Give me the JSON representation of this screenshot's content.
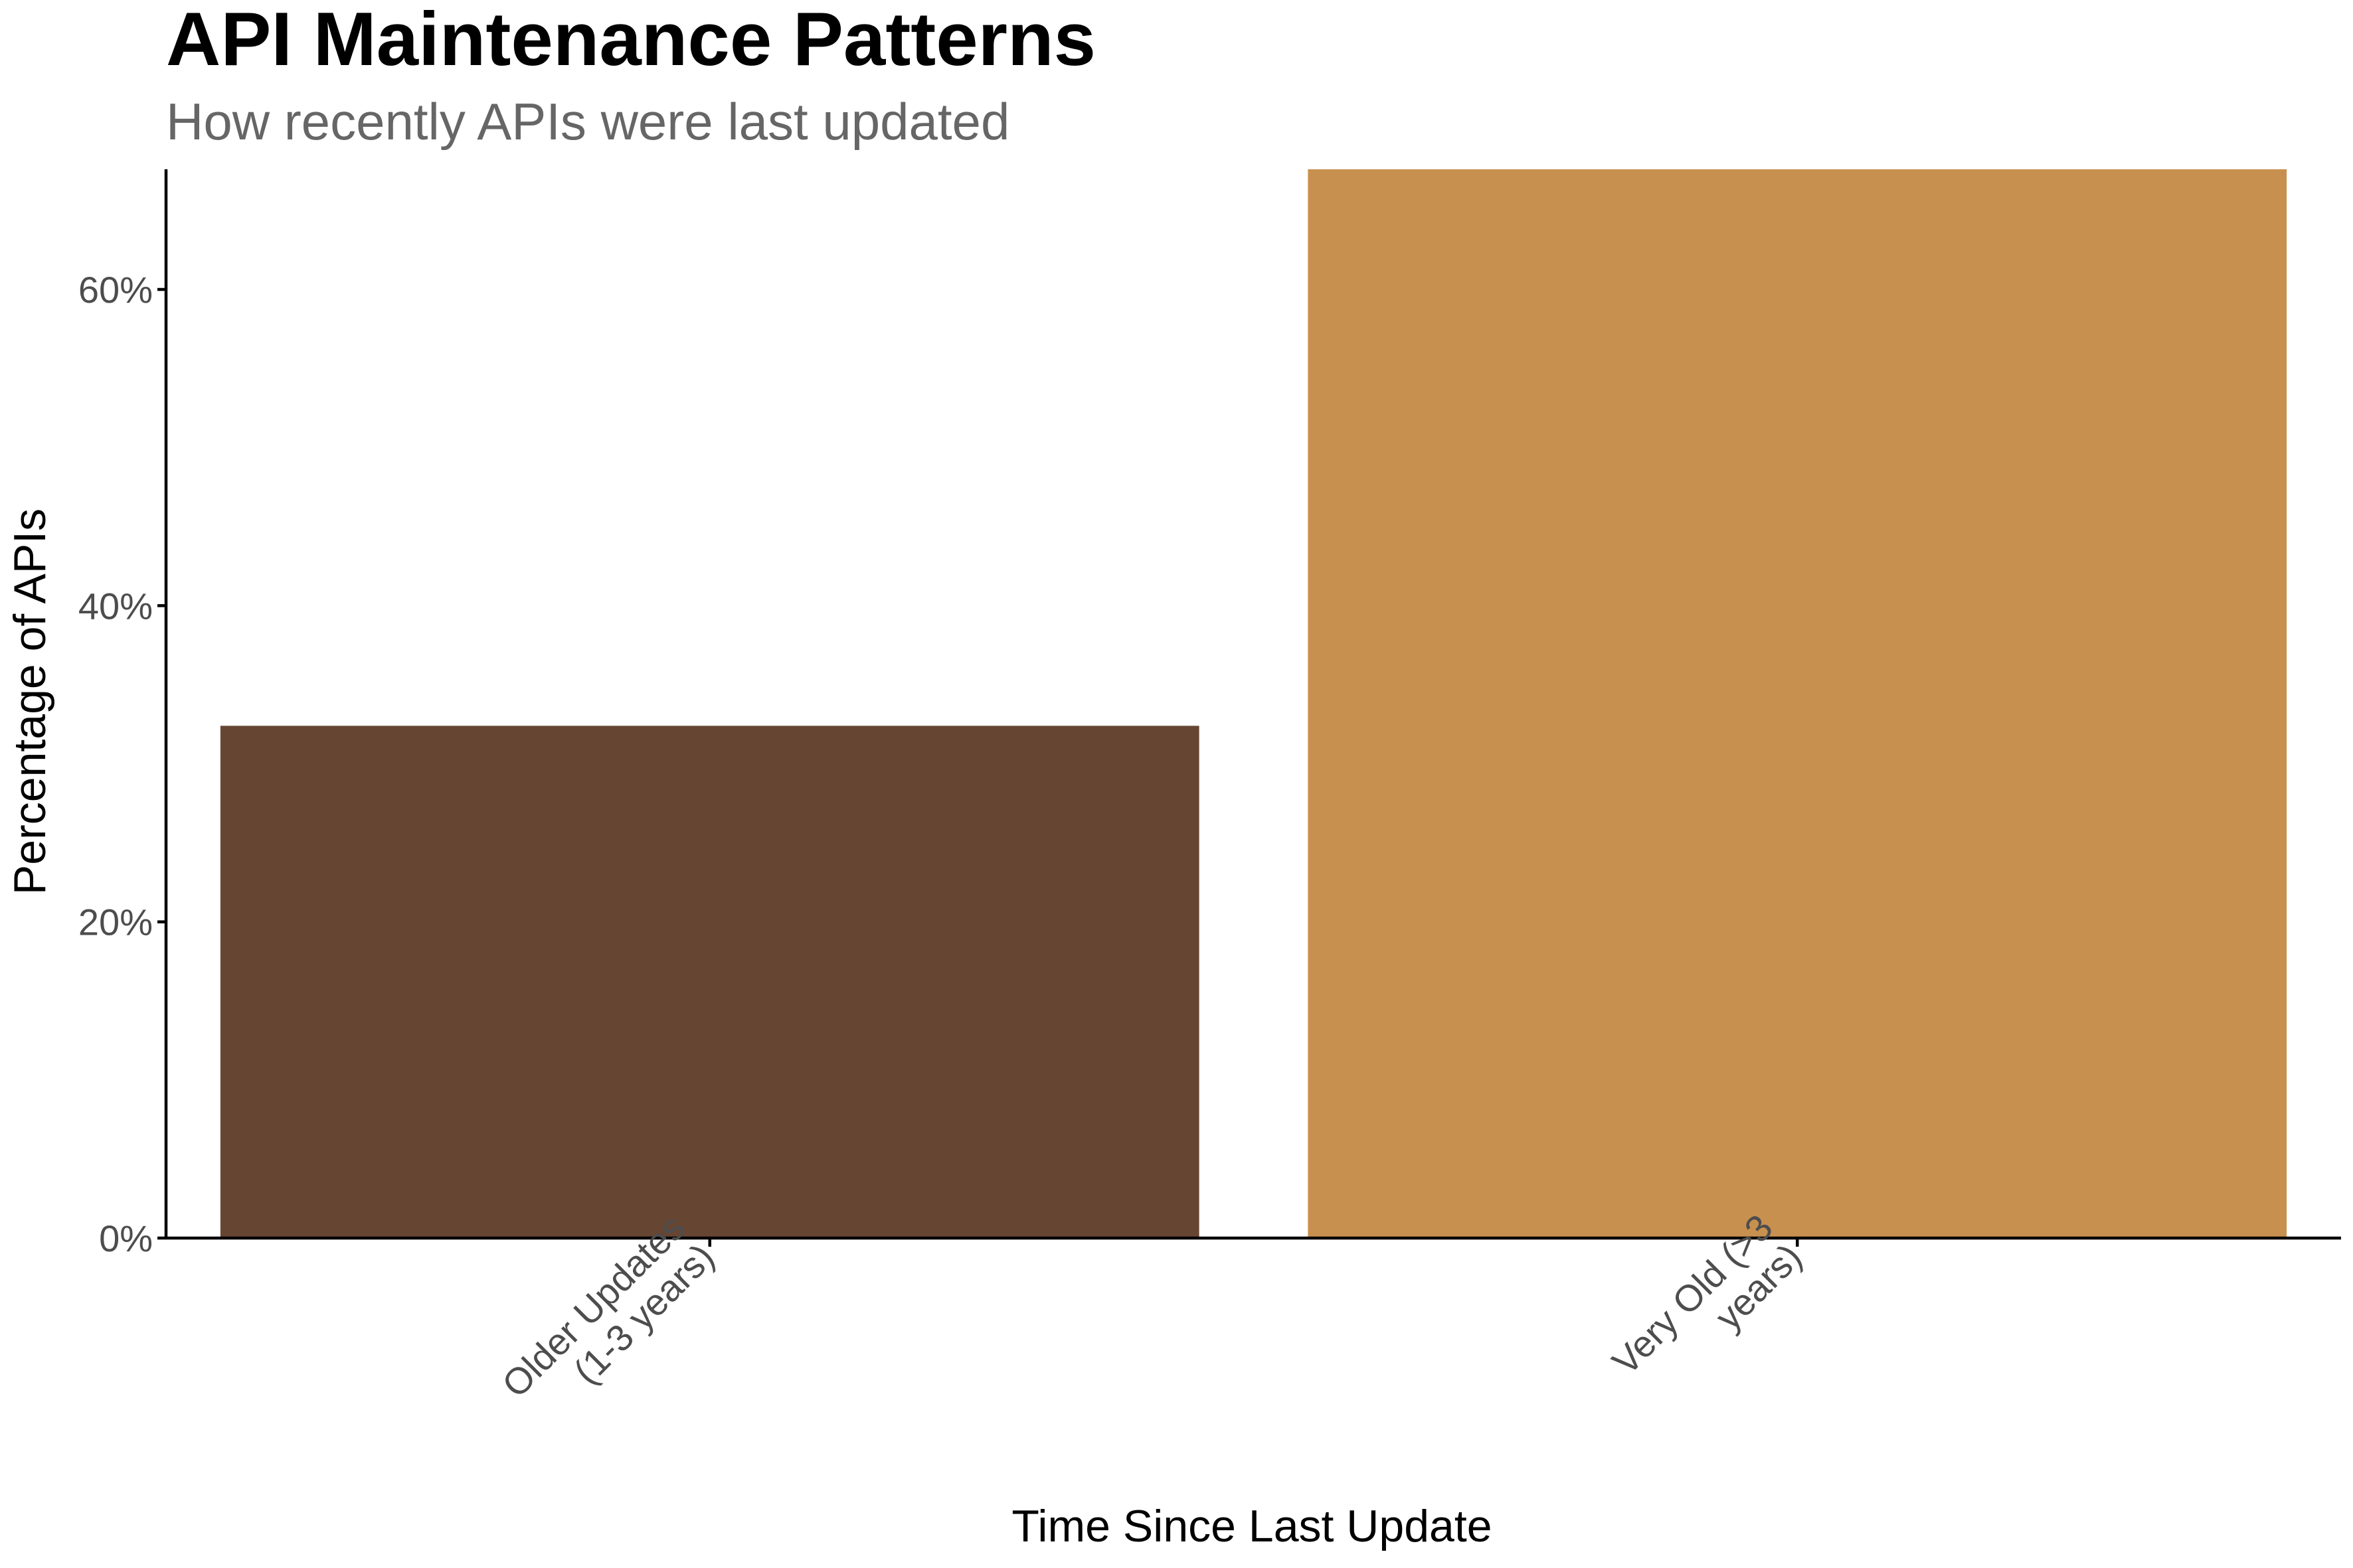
{
  "chart_data": {
    "type": "bar",
    "title": "API Maintenance Patterns",
    "subtitle": "How recently APIs were last updated",
    "xlabel": "Time Since Last Update",
    "ylabel": "Percentage of APIs",
    "categories": [
      [
        "Older Updates",
        "(1-3 years)"
      ],
      [
        "Very Old (>3",
        "years)"
      ]
    ],
    "values": [
      32.4,
      67.6
    ],
    "colors": [
      "#674533",
      "#C8904F"
    ],
    "ylim": [
      0,
      67.6
    ],
    "y_ticks": [
      0,
      20,
      40,
      60
    ],
    "y_tick_labels": [
      "0%",
      "20%",
      "40%",
      "60%"
    ],
    "grid": false,
    "legend": "none"
  }
}
